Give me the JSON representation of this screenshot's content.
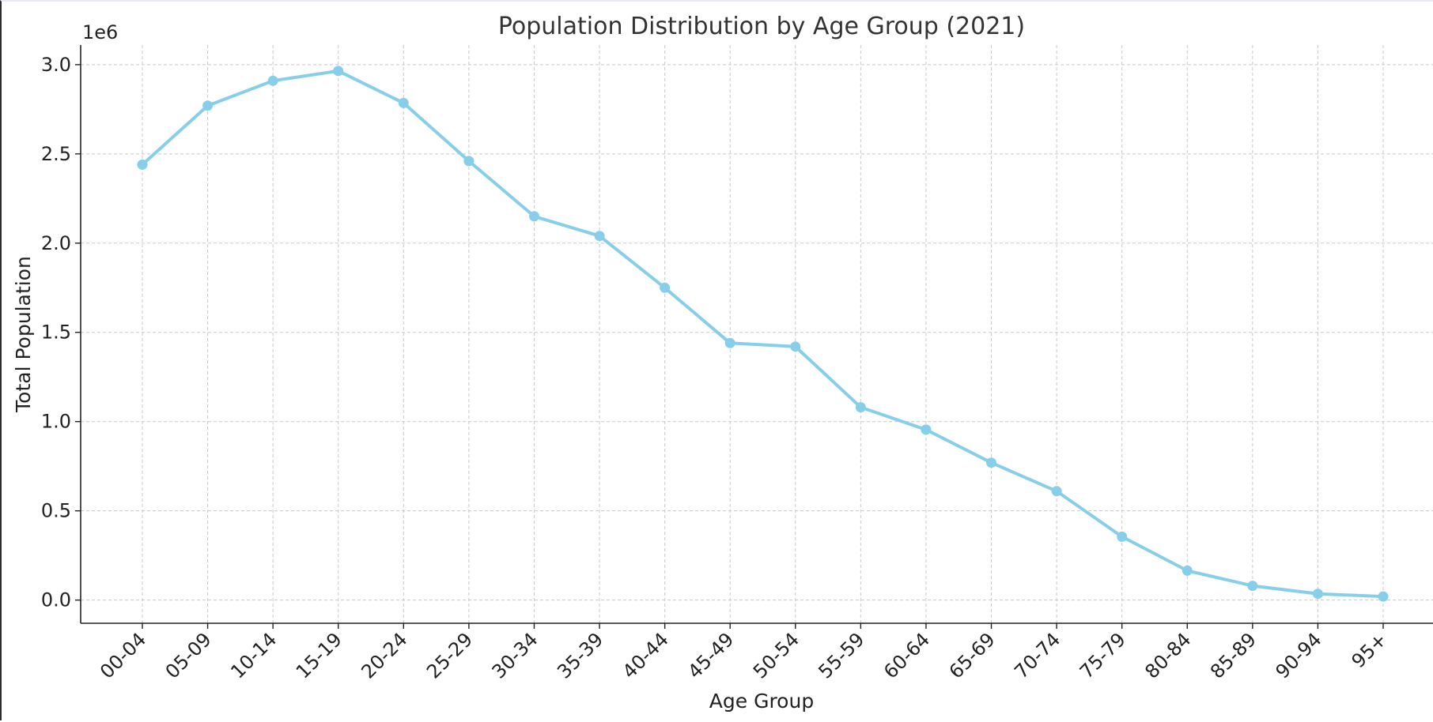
{
  "chart_data": {
    "type": "line",
    "title": "Population Distribution by Age Group (2021)",
    "xlabel": "Age Group",
    "ylabel": "Total Population",
    "y_offset_label": "1e6",
    "categories": [
      "00-04",
      "05-09",
      "10-14",
      "15-19",
      "20-24",
      "25-29",
      "30-34",
      "35-39",
      "40-44",
      "45-49",
      "50-54",
      "55-59",
      "60-64",
      "65-69",
      "70-74",
      "75-79",
      "80-84",
      "85-89",
      "90-94",
      "95+"
    ],
    "series": [
      {
        "values": [
          2440000,
          2770000,
          2910000,
          2965000,
          2785000,
          2460000,
          2150000,
          2040000,
          1750000,
          1440000,
          1420000,
          1080000,
          955000,
          770000,
          610000,
          355000,
          165000,
          80000,
          35000,
          20000
        ],
        "color": "#87ceeb"
      }
    ],
    "yticks": [
      0,
      0.5,
      1.0,
      1.5,
      2.0,
      2.5,
      3.0
    ],
    "ytick_labels": [
      "0.0",
      "0.5",
      "1.0",
      "1.5",
      "2.0",
      "2.5",
      "3.0"
    ],
    "ylim": [
      -130000,
      3110000
    ],
    "grid": true,
    "legend": "none",
    "colors": {
      "line": "#87ceeb",
      "grid": "#c8c8c8",
      "axis": "#222222",
      "title": "#333333"
    }
  }
}
